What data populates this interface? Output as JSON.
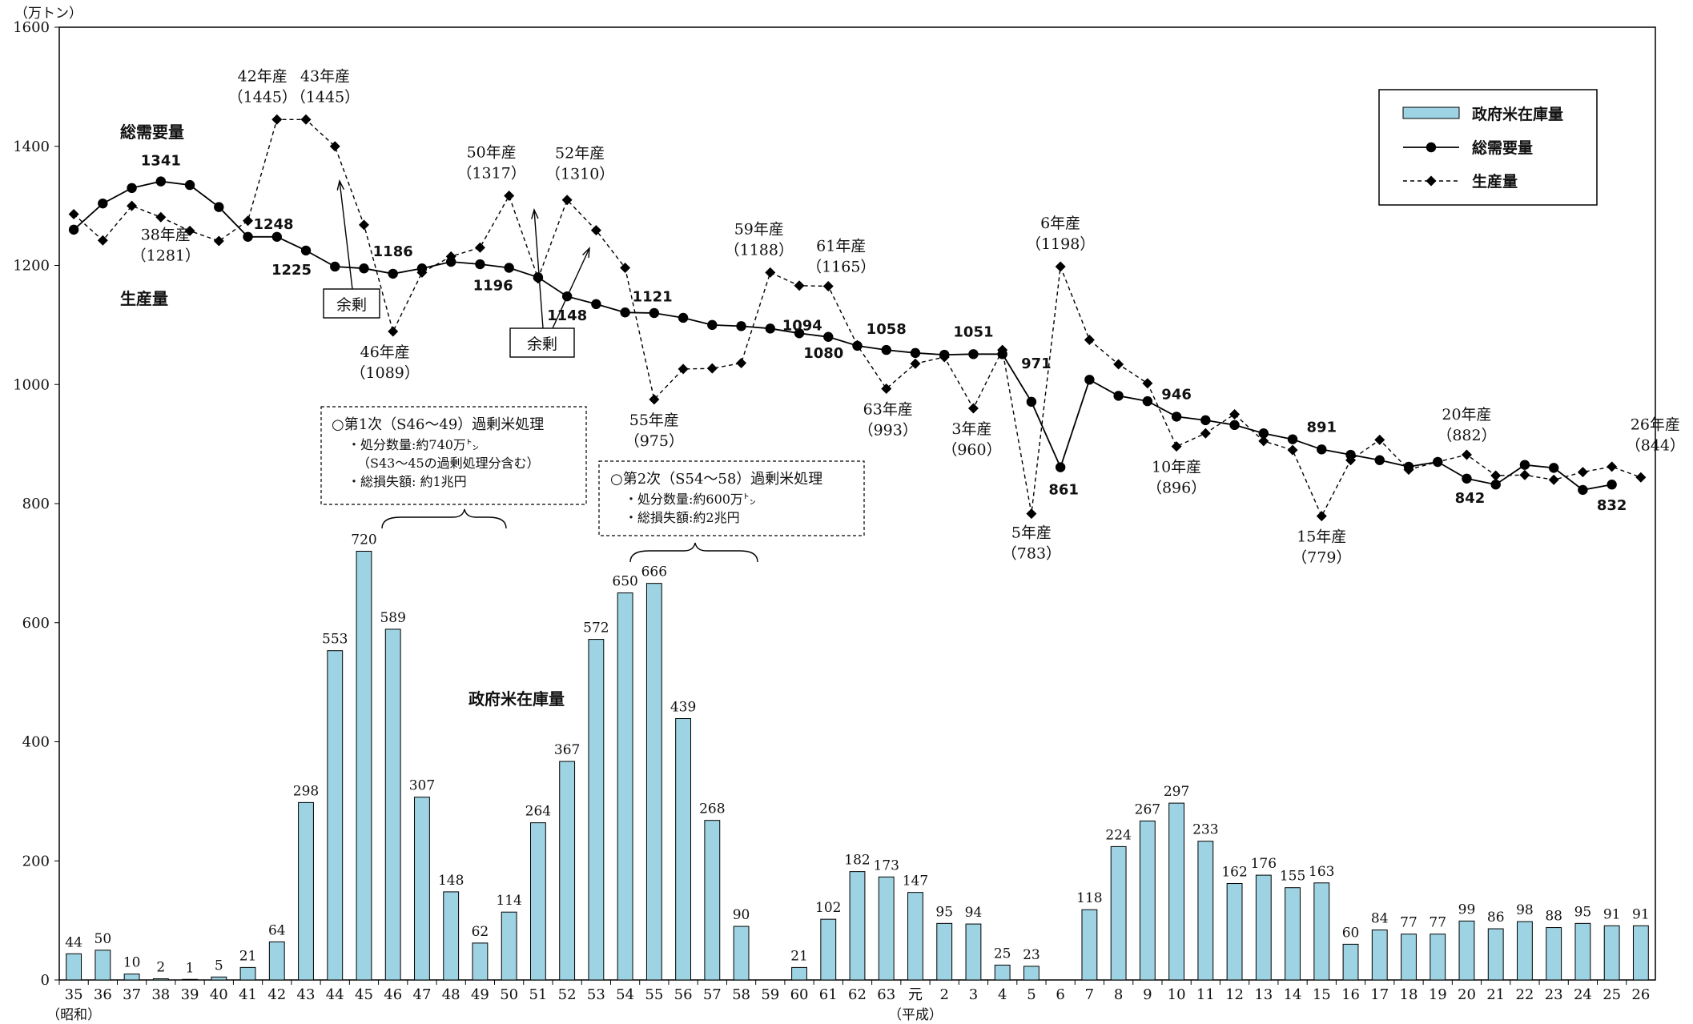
{
  "chart_data": {
    "type": "bar+line",
    "y_unit_label": "（万トン）",
    "ylim": [
      0,
      1600
    ],
    "yticks": [
      0,
      200,
      400,
      600,
      800,
      1000,
      1200,
      1400,
      1600
    ],
    "era_labels": {
      "showa": "（昭和）",
      "heisei": "（平成）"
    },
    "categories": [
      "35",
      "36",
      "37",
      "38",
      "39",
      "40",
      "41",
      "42",
      "43",
      "44",
      "45",
      "46",
      "47",
      "48",
      "49",
      "50",
      "51",
      "52",
      "53",
      "54",
      "55",
      "56",
      "57",
      "58",
      "59",
      "60",
      "61",
      "62",
      "63",
      "元",
      "2",
      "3",
      "4",
      "5",
      "6",
      "7",
      "8",
      "9",
      "10",
      "11",
      "12",
      "13",
      "14",
      "15",
      "16",
      "17",
      "18",
      "19",
      "20",
      "21",
      "22",
      "23",
      "24",
      "25",
      "26"
    ],
    "legend": {
      "position": "top-right",
      "items": {
        "stock": "政府米在庫量",
        "demand": "総需要量",
        "production": "生産量"
      }
    },
    "series": [
      {
        "key": "stock",
        "name": "政府米在庫量",
        "type": "bar",
        "color": "#9dd3e2",
        "values": [
          44,
          50,
          10,
          2,
          1,
          5,
          21,
          64,
          298,
          553,
          720,
          589,
          307,
          148,
          62,
          114,
          264,
          367,
          572,
          650,
          666,
          439,
          268,
          90,
          null,
          21,
          102,
          182,
          173,
          147,
          95,
          94,
          25,
          23,
          null,
          118,
          224,
          267,
          297,
          233,
          162,
          176,
          155,
          163,
          60,
          84,
          77,
          77,
          99,
          86,
          98,
          88,
          95,
          91,
          91
        ]
      },
      {
        "key": "demand",
        "name": "総需要量",
        "type": "line",
        "values": [
          1260,
          1304,
          1330,
          1341,
          1335,
          1298,
          1248,
          1248,
          1225,
          1198,
          1195,
          1186,
          1195,
          1206,
          1202,
          1196,
          1180,
          1148,
          1135,
          1121,
          1120,
          1112,
          1100,
          1098,
          1094,
          1086,
          1080,
          1065,
          1058,
          1053,
          1050,
          1051,
          1051,
          971,
          861,
          1008,
          981,
          972,
          946,
          940,
          932,
          918,
          908,
          891,
          882,
          873,
          862,
          870,
          842,
          832,
          865,
          860,
          823,
          832,
          null
        ]
      },
      {
        "key": "production",
        "name": "生産量",
        "type": "line-dashed",
        "values": [
          1286,
          1242,
          1300,
          1281,
          1258,
          1241,
          1275,
          1445,
          1445,
          1400,
          1268,
          1089,
          1188,
          1215,
          1230,
          1317,
          1178,
          1310,
          1259,
          1196,
          975,
          1026,
          1027,
          1036,
          1188,
          1166,
          1165,
          1066,
          993,
          1035,
          1046,
          960,
          1058,
          783,
          1198,
          1075,
          1034,
          1002,
          896,
          918,
          950,
          905,
          890,
          779,
          873,
          907,
          857,
          870,
          882,
          847,
          848,
          840,
          853,
          862,
          844
        ]
      }
    ],
    "data_labels": {
      "stock": [
        "44",
        "50",
        "10",
        "2",
        "1",
        "5",
        "21",
        "64",
        "298",
        "553",
        "720",
        "589",
        "307",
        "148",
        "62",
        "114",
        "264",
        "367",
        "572",
        "650",
        "666",
        "439",
        "268",
        "90",
        null,
        "21",
        "102",
        "182",
        "173",
        "147",
        "95",
        "94",
        "25",
        "23",
        null,
        "118",
        "224",
        "267",
        "297",
        "233",
        "162",
        "176",
        "155",
        "163",
        "60",
        "84",
        "77",
        "77",
        "99",
        "86",
        "98",
        "88",
        "95",
        "91",
        "91"
      ],
      "demand": [
        {
          "i": 3,
          "text": "1341"
        },
        {
          "i": 6,
          "text": "1248"
        },
        {
          "i": 8,
          "text": "1225"
        },
        {
          "i": 11,
          "text": "1186"
        },
        {
          "i": 15,
          "text": "1196"
        },
        {
          "i": 17,
          "text": "1148"
        },
        {
          "i": 19,
          "text": "1121"
        },
        {
          "i": 24,
          "text": "1094"
        },
        {
          "i": 26,
          "text": "1080"
        },
        {
          "i": 28,
          "text": "1058"
        },
        {
          "i": 31,
          "text": "1051"
        },
        {
          "i": 33,
          "text": "971"
        },
        {
          "i": 34,
          "text": "861"
        },
        {
          "i": 38,
          "text": "946"
        },
        {
          "i": 43,
          "text": "891"
        },
        {
          "i": 48,
          "text": "842"
        },
        {
          "i": 53,
          "text": "832"
        }
      ],
      "production": [
        {
          "i": 3,
          "lines": [
            "38年産",
            "（1281）"
          ]
        },
        {
          "i": 7,
          "lines": [
            "42年産",
            "（1445）"
          ]
        },
        {
          "i": 8,
          "lines": [
            "43年産",
            "（1445）"
          ]
        },
        {
          "i": 11,
          "lines": [
            "46年産",
            "（1089）"
          ]
        },
        {
          "i": 15,
          "lines": [
            "50年産",
            "（1317）"
          ]
        },
        {
          "i": 17,
          "lines": [
            "52年産",
            "（1310）"
          ]
        },
        {
          "i": 20,
          "lines": [
            "55年産",
            "（975）"
          ]
        },
        {
          "i": 24,
          "lines": [
            "59年産",
            "（1188）"
          ]
        },
        {
          "i": 26,
          "lines": [
            "61年産",
            "（1165）"
          ]
        },
        {
          "i": 28,
          "lines": [
            "63年産",
            "（993）"
          ]
        },
        {
          "i": 31,
          "lines": [
            "3年産",
            "（960）"
          ]
        },
        {
          "i": 33,
          "lines": [
            "5年産",
            "（783）"
          ]
        },
        {
          "i": 34,
          "lines": [
            "6年産",
            "（1198）"
          ]
        },
        {
          "i": 38,
          "lines": [
            "10年産",
            "（896）"
          ]
        },
        {
          "i": 43,
          "lines": [
            "15年産",
            "（779）"
          ]
        },
        {
          "i": 48,
          "lines": [
            "20年産",
            "（882）"
          ]
        },
        {
          "i": 54,
          "lines": [
            "26年産",
            "（844）"
          ]
        }
      ]
    },
    "annotations": {
      "series_labels": {
        "demand": "総需要量",
        "production": "生産量",
        "stock": "政府米在庫量"
      },
      "surplus_label": "余剰",
      "disposal_1": {
        "title": "○第1次（S46～49）過剰米処理",
        "lines": [
          "・処分数量:約740万㌧",
          "（S43～45の過剰処理分含む）",
          "・総損失額: 約1兆円"
        ]
      },
      "disposal_2": {
        "title": "○第2次（S54～58）過剰米処理",
        "lines": [
          "・処分数量:約600万㌧",
          "・総損失額:約2兆円"
        ]
      }
    }
  }
}
